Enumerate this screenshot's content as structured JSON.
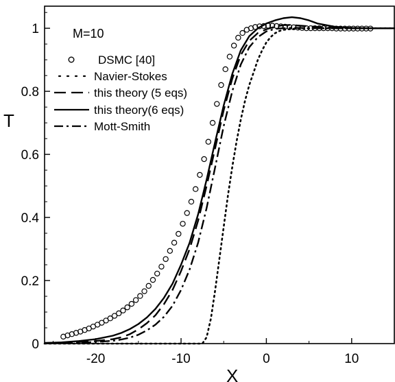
{
  "chart_data": {
    "type": "line",
    "title": "",
    "xlabel": "X",
    "ylabel": "T",
    "xlim": [
      -26,
      15
    ],
    "ylim": [
      0,
      1.07
    ],
    "grid": false,
    "legend_placement": "top-left",
    "annotation": "M=10",
    "x_ticks": [
      -20,
      -10,
      0,
      10
    ],
    "y_ticks": [
      0,
      0.2,
      0.4,
      0.6,
      0.8,
      1
    ],
    "x_tick_labels": [
      "-20",
      "-10",
      "0",
      "10"
    ],
    "y_tick_labels": [
      "0",
      "0.2",
      "0.4",
      "0.6",
      "0.8",
      "1"
    ],
    "series": [
      {
        "name": "DSMC [40]",
        "style": "circles",
        "color": "#000000",
        "x": [
          -23.8,
          -23.3,
          -22.8,
          -22.3,
          -21.8,
          -21.3,
          -20.8,
          -20.3,
          -19.8,
          -19.3,
          -18.8,
          -18.3,
          -17.8,
          -17.3,
          -16.8,
          -16.3,
          -15.8,
          -15.3,
          -14.8,
          -14.3,
          -13.8,
          -13.3,
          -12.8,
          -12.3,
          -11.8,
          -11.3,
          -10.8,
          -10.3,
          -9.8,
          -9.3,
          -8.8,
          -8.3,
          -7.8,
          -7.3,
          -6.8,
          -6.3,
          -5.8,
          -5.3,
          -4.8,
          -4.3,
          -3.8,
          -3.3,
          -2.8,
          -2.3,
          -1.8,
          -1.3,
          -0.8,
          -0.3,
          0.2,
          0.7,
          1.2,
          1.7,
          2.2,
          2.7,
          3.2,
          3.7,
          4.2,
          4.7,
          5.2,
          5.7,
          6.2,
          6.7,
          7.2,
          7.7,
          8.2,
          8.7,
          9.2,
          9.7,
          10.2,
          10.7,
          11.2,
          11.7,
          12.2
        ],
        "y": [
          0.022,
          0.026,
          0.03,
          0.034,
          0.038,
          0.043,
          0.048,
          0.054,
          0.06,
          0.066,
          0.073,
          0.08,
          0.088,
          0.096,
          0.105,
          0.115,
          0.126,
          0.138,
          0.151,
          0.166,
          0.183,
          0.202,
          0.222,
          0.244,
          0.268,
          0.294,
          0.32,
          0.348,
          0.38,
          0.414,
          0.45,
          0.49,
          0.535,
          0.585,
          0.64,
          0.7,
          0.76,
          0.82,
          0.87,
          0.91,
          0.945,
          0.97,
          0.985,
          0.995,
          1.0,
          1.004,
          1.006,
          1.007,
          1.008,
          1.008,
          1.007,
          1.006,
          1.005,
          1.004,
          1.003,
          1.002,
          1.001,
          1.0,
          1.0,
          1.0,
          1.0,
          1.0,
          1.0,
          1.0,
          0.999,
          0.999,
          0.999,
          0.999,
          0.999,
          0.999,
          0.999,
          0.999,
          0.999
        ]
      },
      {
        "name": "Navier-Stokes",
        "style": "dotted",
        "color": "#000000",
        "x": [
          -26,
          -20,
          -15,
          -10,
          -7.5,
          -7,
          -6.5,
          -6,
          -5.5,
          -5,
          -4.5,
          -4,
          -3.5,
          -3,
          -2.5,
          -2,
          -1.5,
          -1,
          -0.5,
          0,
          0.5,
          1,
          1.5,
          2,
          3,
          4,
          6,
          8,
          10,
          15
        ],
        "y": [
          0,
          0,
          0,
          0,
          0,
          0.02,
          0.08,
          0.17,
          0.27,
          0.37,
          0.47,
          0.56,
          0.64,
          0.71,
          0.77,
          0.82,
          0.86,
          0.9,
          0.93,
          0.955,
          0.972,
          0.984,
          0.991,
          0.995,
          0.998,
          1.0,
          1.0,
          1.0,
          1.0,
          1.0
        ]
      },
      {
        "name": "this theory (5 eqs)",
        "style": "dashed",
        "color": "#000000",
        "x": [
          -26,
          -24,
          -22,
          -20,
          -18,
          -17,
          -16,
          -15,
          -14,
          -13,
          -12,
          -11,
          -10,
          -9,
          -8,
          -7,
          -6,
          -5,
          -4,
          -3,
          -2,
          -1,
          0,
          1,
          2,
          3,
          4,
          6,
          8,
          10,
          12,
          15
        ],
        "y": [
          0.002,
          0.003,
          0.005,
          0.008,
          0.014,
          0.02,
          0.03,
          0.045,
          0.065,
          0.09,
          0.125,
          0.17,
          0.23,
          0.3,
          0.39,
          0.5,
          0.62,
          0.74,
          0.84,
          0.915,
          0.96,
          0.985,
          0.997,
          1.005,
          1.01,
          1.01,
          1.008,
          1.004,
          1.001,
          1.0,
          1.0,
          1.0
        ]
      },
      {
        "name": "this theory(6 eqs)",
        "style": "solid",
        "color": "#000000",
        "x": [
          -26,
          -24,
          -22,
          -20,
          -18,
          -17,
          -16,
          -15,
          -14,
          -13,
          -12,
          -11,
          -10,
          -9,
          -8,
          -7,
          -6,
          -5,
          -4,
          -3,
          -2,
          -1,
          0,
          1,
          2,
          3,
          4,
          5,
          6,
          8,
          10,
          12,
          15
        ],
        "y": [
          0.002,
          0.004,
          0.008,
          0.014,
          0.025,
          0.034,
          0.046,
          0.062,
          0.083,
          0.11,
          0.145,
          0.19,
          0.25,
          0.32,
          0.41,
          0.52,
          0.64,
          0.755,
          0.855,
          0.93,
          0.975,
          1.0,
          1.015,
          1.025,
          1.032,
          1.035,
          1.032,
          1.025,
          1.015,
          1.005,
          1.001,
          1.0,
          1.0
        ]
      },
      {
        "name": "Mott-Smith",
        "style": "dashdot",
        "color": "#000000",
        "x": [
          -26,
          -24,
          -22,
          -20,
          -18,
          -17,
          -16,
          -15,
          -14,
          -13,
          -12,
          -11,
          -10,
          -9,
          -8,
          -7,
          -6,
          -5,
          -4,
          -3,
          -2,
          -1,
          0,
          1,
          2,
          3,
          4,
          6,
          8,
          10,
          12,
          15
        ],
        "y": [
          0.001,
          0.002,
          0.003,
          0.005,
          0.009,
          0.013,
          0.019,
          0.028,
          0.042,
          0.06,
          0.085,
          0.12,
          0.17,
          0.235,
          0.32,
          0.43,
          0.56,
          0.69,
          0.8,
          0.885,
          0.94,
          0.972,
          0.99,
          0.998,
          1.0,
          1.001,
          1.001,
          1.0,
          1.0,
          1.0,
          1.0,
          1.0
        ]
      }
    ]
  }
}
